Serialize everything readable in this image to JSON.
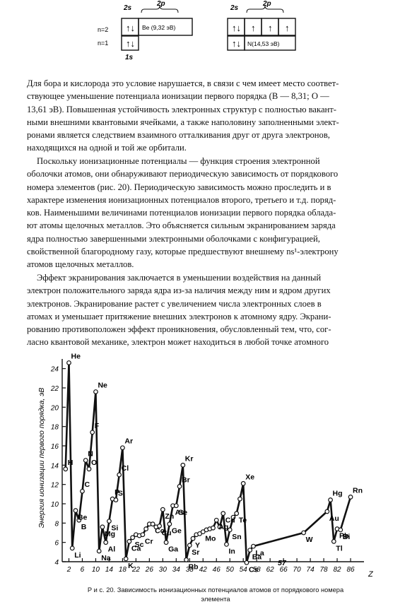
{
  "orbital_diagrams": [
    {
      "label_2s": "2s",
      "label_2p": "2p",
      "label_n2": "n=2",
      "label_n1": "n=1",
      "label_1s": "1s",
      "element_box": "Be (9,32 эВ)"
    },
    {
      "label_2s": "2s",
      "label_2p": "2p",
      "element_box": "N(14,53 эВ)"
    }
  ],
  "paragraphs": [
    {
      "lines": [
        "Для бора и кислорода это условие нарушается, в связи с чем имеет место соответ-",
        "ствующее уменьшение потенциала ионизации первого порядка (B — 8,31; O —",
        "13,61 эВ). Повышенная устойчивость электронных структур с полностью вакант-",
        "ными внешними квантовыми ячейками, а также наполовину заполненными элект-",
        "ронами является следствием взаимного отталкивания друг от друга электронов,",
        "находящихся на одной и той же орбитали."
      ]
    },
    {
      "lines": [
        "Поскольку ионизационные потенциалы — функция строения электронной",
        "оболочки атомов, они обнаруживают периодическую зависимость от порядкового",
        "номера элементов (рис. 20). Периодическую зависимость можно проследить и в",
        "характере изменения ионизационных потенциалов второго, третьего и т.д. поряд-",
        "ков. Наименьшими величинами потенциалов ионизации первого порядка облада-",
        "ют атомы щелочных металлов. Это объясняется сильным экранированием заряда",
        "ядра полностью завершенными электронными оболочками с конфигурацией,",
        "свойственной благородному газу, которые предшествуют внешнему ns¹-электрону",
        "атомов щелочных металлов."
      ]
    },
    {
      "lines": [
        "Эффект экранирования заключается в уменьшении воздействия на данный",
        "электрон положительного заряда ядра из-за наличия между ним и ядром других",
        "электронов. Экранирование растет с увеличением числа электронных слоев в",
        "атомах и уменьшает притяжение внешних электронов к атомному ядру. Экрани-",
        "рованию противоположен эффект проникновения, обусловленный тем, что, сог-",
        "ласно квантовой механике, электрон может находиться в любой точке атомного"
      ]
    }
  ],
  "chart_data": {
    "type": "line",
    "ylabel": "Энергия ионизации первого порядка, эВ",
    "xlabel": "Z",
    "xlim": [
      0,
      90
    ],
    "ylim": [
      4,
      25
    ],
    "yticks": [
      4,
      6,
      8,
      10,
      12,
      14,
      16,
      18,
      20,
      22,
      24
    ],
    "xticks": [
      2,
      6,
      10,
      14,
      18,
      22,
      26,
      30,
      34,
      38,
      42,
      46,
      50,
      54,
      58,
      62,
      66,
      70,
      74,
      78,
      82,
      86
    ],
    "annotation": "57",
    "series": [
      {
        "values": [
          [
            1,
            13.6,
            "H"
          ],
          [
            2,
            24.6,
            "He"
          ],
          [
            3,
            5.4,
            "Li"
          ],
          [
            4,
            9.3,
            "Be"
          ],
          [
            5,
            8.3,
            "B"
          ],
          [
            6,
            11.3,
            "C"
          ],
          [
            7,
            14.5,
            "N"
          ],
          [
            8,
            13.6,
            "O"
          ],
          [
            9,
            17.4,
            "F"
          ],
          [
            10,
            21.6,
            "Ne"
          ],
          [
            11,
            5.1,
            "Na"
          ],
          [
            12,
            7.6,
            "Mg"
          ],
          [
            13,
            6.0,
            "Al"
          ],
          [
            14,
            8.2,
            "Si"
          ],
          [
            15,
            10.5,
            "P"
          ],
          [
            16,
            10.4,
            "S"
          ],
          [
            17,
            13.0,
            "Cl"
          ],
          [
            18,
            15.8,
            "Ar"
          ],
          [
            19,
            4.3,
            "K"
          ],
          [
            20,
            6.1,
            "Ca"
          ],
          [
            21,
            6.5,
            "Sc"
          ],
          [
            22,
            6.8,
            ""
          ],
          [
            23,
            6.7,
            ""
          ],
          [
            24,
            6.8,
            "Cr"
          ],
          [
            25,
            7.4,
            ""
          ],
          [
            26,
            7.9,
            ""
          ],
          [
            27,
            7.9,
            "Co"
          ],
          [
            28,
            7.6,
            ""
          ],
          [
            29,
            7.7,
            "Cu"
          ],
          [
            30,
            9.4,
            "Zn"
          ],
          [
            31,
            6.0,
            "Ga"
          ],
          [
            32,
            7.9,
            "Ge"
          ],
          [
            33,
            9.8,
            "As"
          ],
          [
            34,
            9.8,
            "Se"
          ],
          [
            35,
            11.8,
            "Br"
          ],
          [
            36,
            14.0,
            "Kr"
          ],
          [
            37,
            4.2,
            "Rb"
          ],
          [
            38,
            5.7,
            "Sr"
          ],
          [
            39,
            6.4,
            "Y"
          ],
          [
            40,
            6.8,
            ""
          ],
          [
            41,
            6.9,
            ""
          ],
          [
            42,
            7.1,
            "Mo"
          ],
          [
            43,
            7.3,
            ""
          ],
          [
            44,
            7.4,
            ""
          ],
          [
            45,
            7.5,
            ""
          ],
          [
            46,
            8.3,
            "Ag"
          ],
          [
            47,
            7.6,
            ""
          ],
          [
            48,
            9.0,
            "Cd"
          ],
          [
            49,
            5.8,
            "In"
          ],
          [
            50,
            7.3,
            "Sn"
          ],
          [
            51,
            8.6,
            ""
          ],
          [
            52,
            9.0,
            "Te"
          ],
          [
            53,
            10.5,
            "I"
          ],
          [
            54,
            12.1,
            "Xe"
          ],
          [
            55,
            3.9,
            "Cs"
          ],
          [
            56,
            5.2,
            "Ba"
          ],
          [
            57,
            5.6,
            "La"
          ],
          [
            72,
            7.0,
            "W"
          ],
          [
            79,
            9.2,
            "Au"
          ],
          [
            80,
            10.4,
            "Hg"
          ],
          [
            81,
            6.1,
            "Tl"
          ],
          [
            82,
            7.4,
            "Pb"
          ],
          [
            83,
            7.3,
            "Bi"
          ],
          [
            86,
            10.7,
            "Rn"
          ]
        ]
      }
    ]
  },
  "caption": {
    "line1": "Р и с. 20. Зависимость ионизационных потенциалов атомов от порядкового номера",
    "line2": "элемента"
  }
}
